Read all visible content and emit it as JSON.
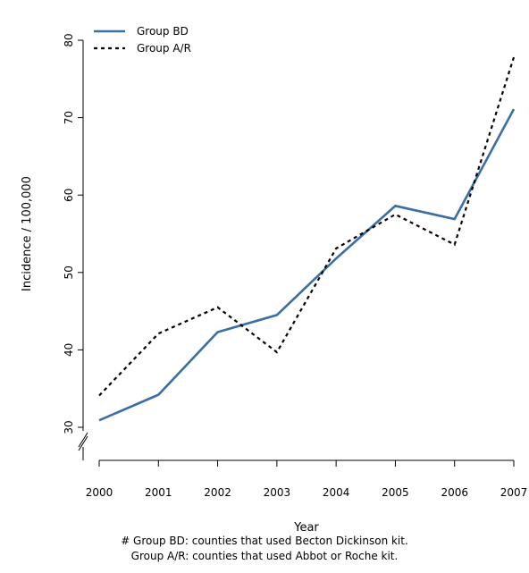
{
  "chart_data": {
    "type": "line",
    "title": "",
    "xlabel": "Year",
    "ylabel": "Incidence / 100,000",
    "x": [
      2000,
      2001,
      2002,
      2003,
      2004,
      2005,
      2006,
      2007
    ],
    "x_tick_labels": [
      "2000",
      "2001",
      "2002",
      "2003",
      "2004",
      "2005",
      "2006",
      "2007"
    ],
    "y_ticks": [
      30,
      40,
      50,
      60,
      70,
      80
    ],
    "ylim": [
      28,
      82
    ],
    "y_axis_break": true,
    "grid": false,
    "legend_position": "top-left",
    "series": [
      {
        "name": "Group BD",
        "style": "solid",
        "color": "#3a6ea5",
        "values": [
          30.9,
          34.2,
          42.3,
          44.5,
          51.8,
          58.6,
          56.9,
          71.1
        ]
      },
      {
        "name": "Group A/R",
        "style": "dashed",
        "color": "#000000",
        "values": [
          34.1,
          42.1,
          45.5,
          39.7,
          53.1,
          57.5,
          53.6,
          77.8
        ]
      }
    ]
  },
  "footnotes": {
    "line1": "# Group BD: counties that used Becton Dickinson kit.",
    "line2": "Group A/R: counties that used Abbot or Roche kit."
  }
}
